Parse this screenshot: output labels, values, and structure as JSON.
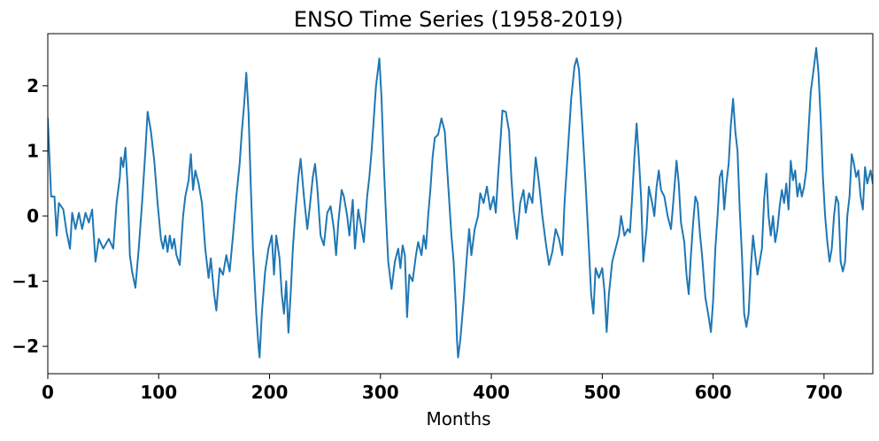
{
  "chart_data": {
    "type": "line",
    "title": "ENSO Time Series (1958-2019)",
    "xlabel": "Months",
    "ylabel": "",
    "xlim": [
      0,
      744
    ],
    "ylim": [
      -2.42,
      2.8
    ],
    "x_ticks": [
      0,
      100,
      200,
      300,
      400,
      500,
      600,
      700
    ],
    "y_ticks": [
      -2,
      -1,
      0,
      1,
      2
    ],
    "y_tick_labels": [
      "−2",
      "−1",
      "0",
      "1",
      "2"
    ],
    "grid": false,
    "legend": "none",
    "series": [
      {
        "color": "#1f77b4",
        "points": [
          [
            0,
            1.5
          ],
          [
            3,
            0.3
          ],
          [
            6,
            0.3
          ],
          [
            8,
            -0.3
          ],
          [
            10,
            0.2
          ],
          [
            14,
            0.1
          ],
          [
            17,
            -0.25
          ],
          [
            20,
            -0.5
          ],
          [
            22,
            0.05
          ],
          [
            25,
            -0.2
          ],
          [
            28,
            0.05
          ],
          [
            31,
            -0.2
          ],
          [
            34,
            0.05
          ],
          [
            37,
            -0.1
          ],
          [
            40,
            0.1
          ],
          [
            43,
            -0.7
          ],
          [
            46,
            -0.35
          ],
          [
            50,
            -0.5
          ],
          [
            55,
            -0.35
          ],
          [
            59,
            -0.5
          ],
          [
            62,
            0.2
          ],
          [
            65,
            0.6
          ],
          [
            66,
            0.9
          ],
          [
            68,
            0.75
          ],
          [
            70,
            1.05
          ],
          [
            72,
            0.45
          ],
          [
            74,
            -0.6
          ],
          [
            76,
            -0.85
          ],
          [
            79,
            -1.1
          ],
          [
            82,
            -0.5
          ],
          [
            85,
            0.2
          ],
          [
            88,
            1.0
          ],
          [
            90,
            1.6
          ],
          [
            93,
            1.3
          ],
          [
            96,
            0.85
          ],
          [
            99,
            0.2
          ],
          [
            102,
            -0.35
          ],
          [
            104,
            -0.5
          ],
          [
            106,
            -0.3
          ],
          [
            108,
            -0.55
          ],
          [
            110,
            -0.3
          ],
          [
            112,
            -0.5
          ],
          [
            114,
            -0.35
          ],
          [
            116,
            -0.6
          ],
          [
            119,
            -0.75
          ],
          [
            122,
            0.0
          ],
          [
            124,
            0.3
          ],
          [
            127,
            0.55
          ],
          [
            129,
            0.95
          ],
          [
            131,
            0.4
          ],
          [
            133,
            0.7
          ],
          [
            136,
            0.5
          ],
          [
            139,
            0.2
          ],
          [
            142,
            -0.5
          ],
          [
            145,
            -0.95
          ],
          [
            147,
            -0.65
          ],
          [
            150,
            -1.2
          ],
          [
            152,
            -1.45
          ],
          [
            155,
            -0.8
          ],
          [
            158,
            -0.9
          ],
          [
            161,
            -0.6
          ],
          [
            164,
            -0.85
          ],
          [
            167,
            -0.3
          ],
          [
            170,
            0.3
          ],
          [
            173,
            0.8
          ],
          [
            175,
            1.3
          ],
          [
            177,
            1.7
          ],
          [
            179,
            2.2
          ],
          [
            181,
            1.6
          ],
          [
            183,
            0.5
          ],
          [
            185,
            -0.5
          ],
          [
            188,
            -1.5
          ],
          [
            190,
            -2.0
          ],
          [
            191,
            -2.17
          ],
          [
            193,
            -1.5
          ],
          [
            196,
            -0.85
          ],
          [
            199,
            -0.5
          ],
          [
            202,
            -0.3
          ],
          [
            204,
            -0.9
          ],
          [
            206,
            -0.3
          ],
          [
            209,
            -0.65
          ],
          [
            211,
            -1.2
          ],
          [
            213,
            -1.5
          ],
          [
            215,
            -1.0
          ],
          [
            217,
            -1.79
          ],
          [
            219,
            -1.2
          ],
          [
            221,
            -0.5
          ],
          [
            223,
            0.0
          ],
          [
            226,
            0.6
          ],
          [
            228,
            0.88
          ],
          [
            231,
            0.3
          ],
          [
            234,
            -0.2
          ],
          [
            236,
            0.1
          ],
          [
            239,
            0.6
          ],
          [
            241,
            0.8
          ],
          [
            243,
            0.45
          ],
          [
            246,
            -0.3
          ],
          [
            249,
            -0.45
          ],
          [
            252,
            0.05
          ],
          [
            255,
            0.15
          ],
          [
            258,
            -0.2
          ],
          [
            260,
            -0.6
          ],
          [
            262,
            -0.1
          ],
          [
            265,
            0.4
          ],
          [
            267,
            0.3
          ],
          [
            270,
            0.0
          ],
          [
            272,
            -0.3
          ],
          [
            275,
            0.25
          ],
          [
            277,
            -0.5
          ],
          [
            280,
            0.1
          ],
          [
            283,
            -0.2
          ],
          [
            285,
            -0.4
          ],
          [
            288,
            0.3
          ],
          [
            290,
            0.6
          ],
          [
            292,
            1.0
          ],
          [
            294,
            1.5
          ],
          [
            296,
            2.0
          ],
          [
            299,
            2.42
          ],
          [
            301,
            1.8
          ],
          [
            303,
            0.8
          ],
          [
            305,
            0.0
          ],
          [
            307,
            -0.7
          ],
          [
            310,
            -1.12
          ],
          [
            313,
            -0.7
          ],
          [
            316,
            -0.5
          ],
          [
            318,
            -0.8
          ],
          [
            320,
            -0.45
          ],
          [
            322,
            -0.6
          ],
          [
            324,
            -1.55
          ],
          [
            326,
            -0.9
          ],
          [
            329,
            -1.0
          ],
          [
            332,
            -0.6
          ],
          [
            334,
            -0.4
          ],
          [
            337,
            -0.6
          ],
          [
            339,
            -0.3
          ],
          [
            341,
            -0.5
          ],
          [
            343,
            0.0
          ],
          [
            345,
            0.4
          ],
          [
            347,
            0.9
          ],
          [
            349,
            1.2
          ],
          [
            352,
            1.25
          ],
          [
            355,
            1.5
          ],
          [
            358,
            1.3
          ],
          [
            361,
            0.5
          ],
          [
            364,
            -0.3
          ],
          [
            366,
            -0.7
          ],
          [
            368,
            -1.4
          ],
          [
            369,
            -1.9
          ],
          [
            370,
            -2.17
          ],
          [
            372,
            -1.9
          ],
          [
            375,
            -1.3
          ],
          [
            378,
            -0.6
          ],
          [
            380,
            -0.2
          ],
          [
            382,
            -0.6
          ],
          [
            385,
            -0.2
          ],
          [
            388,
            0.0
          ],
          [
            390,
            0.35
          ],
          [
            393,
            0.2
          ],
          [
            396,
            0.45
          ],
          [
            399,
            0.1
          ],
          [
            402,
            0.3
          ],
          [
            404,
            0.05
          ],
          [
            406,
            0.6
          ],
          [
            408,
            1.1
          ],
          [
            410,
            1.62
          ],
          [
            413,
            1.6
          ],
          [
            416,
            1.3
          ],
          [
            418,
            0.6
          ],
          [
            420,
            0.1
          ],
          [
            423,
            -0.35
          ],
          [
            426,
            0.2
          ],
          [
            429,
            0.4
          ],
          [
            431,
            0.05
          ],
          [
            434,
            0.35
          ],
          [
            437,
            0.2
          ],
          [
            440,
            0.9
          ],
          [
            443,
            0.5
          ],
          [
            446,
            0.0
          ],
          [
            449,
            -0.4
          ],
          [
            452,
            -0.75
          ],
          [
            455,
            -0.55
          ],
          [
            458,
            -0.2
          ],
          [
            461,
            -0.35
          ],
          [
            464,
            -0.6
          ],
          [
            466,
            0.2
          ],
          [
            469,
            1.0
          ],
          [
            472,
            1.8
          ],
          [
            475,
            2.3
          ],
          [
            477,
            2.42
          ],
          [
            479,
            2.25
          ],
          [
            482,
            1.4
          ],
          [
            485,
            0.5
          ],
          [
            488,
            -0.5
          ],
          [
            490,
            -1.2
          ],
          [
            492,
            -1.5
          ],
          [
            494,
            -0.8
          ],
          [
            497,
            -0.95
          ],
          [
            500,
            -0.8
          ],
          [
            502,
            -1.15
          ],
          [
            504,
            -1.78
          ],
          [
            506,
            -1.2
          ],
          [
            509,
            -0.7
          ],
          [
            512,
            -0.5
          ],
          [
            515,
            -0.3
          ],
          [
            517,
            0.0
          ],
          [
            520,
            -0.3
          ],
          [
            523,
            -0.2
          ],
          [
            525,
            -0.25
          ],
          [
            527,
            0.3
          ],
          [
            529,
            0.9
          ],
          [
            531,
            1.42
          ],
          [
            533,
            0.9
          ],
          [
            535,
            0.3
          ],
          [
            537,
            -0.7
          ],
          [
            540,
            -0.2
          ],
          [
            542,
            0.45
          ],
          [
            545,
            0.2
          ],
          [
            547,
            0.0
          ],
          [
            549,
            0.45
          ],
          [
            551,
            0.7
          ],
          [
            553,
            0.4
          ],
          [
            556,
            0.3
          ],
          [
            559,
            0.0
          ],
          [
            562,
            -0.2
          ],
          [
            564,
            0.2
          ],
          [
            567,
            0.85
          ],
          [
            569,
            0.5
          ],
          [
            571,
            -0.1
          ],
          [
            574,
            -0.4
          ],
          [
            576,
            -0.9
          ],
          [
            578,
            -1.2
          ],
          [
            580,
            -0.6
          ],
          [
            582,
            -0.1
          ],
          [
            584,
            0.3
          ],
          [
            586,
            0.2
          ],
          [
            588,
            -0.25
          ],
          [
            590,
            -0.6
          ],
          [
            593,
            -1.25
          ],
          [
            596,
            -1.55
          ],
          [
            598,
            -1.78
          ],
          [
            600,
            -1.3
          ],
          [
            602,
            -0.5
          ],
          [
            604,
            0.0
          ],
          [
            606,
            0.6
          ],
          [
            608,
            0.7
          ],
          [
            610,
            0.1
          ],
          [
            612,
            0.5
          ],
          [
            614,
            0.8
          ],
          [
            616,
            1.4
          ],
          [
            618,
            1.8
          ],
          [
            620,
            1.3
          ],
          [
            622,
            1.0
          ],
          [
            624,
            0.1
          ],
          [
            626,
            -0.6
          ],
          [
            628,
            -1.5
          ],
          [
            630,
            -1.7
          ],
          [
            632,
            -1.5
          ],
          [
            634,
            -0.8
          ],
          [
            636,
            -0.3
          ],
          [
            638,
            -0.6
          ],
          [
            640,
            -0.9
          ],
          [
            642,
            -0.7
          ],
          [
            644,
            -0.5
          ],
          [
            646,
            0.25
          ],
          [
            648,
            0.65
          ],
          [
            650,
            0.0
          ],
          [
            652,
            -0.3
          ],
          [
            654,
            0.0
          ],
          [
            656,
            -0.4
          ],
          [
            658,
            -0.2
          ],
          [
            660,
            0.15
          ],
          [
            662,
            0.4
          ],
          [
            664,
            0.2
          ],
          [
            666,
            0.5
          ],
          [
            668,
            0.1
          ],
          [
            670,
            0.85
          ],
          [
            672,
            0.55
          ],
          [
            674,
            0.7
          ],
          [
            676,
            0.3
          ],
          [
            678,
            0.5
          ],
          [
            680,
            0.3
          ],
          [
            682,
            0.45
          ],
          [
            684,
            0.7
          ],
          [
            686,
            1.3
          ],
          [
            688,
            1.9
          ],
          [
            691,
            2.3
          ],
          [
            693,
            2.58
          ],
          [
            695,
            2.2
          ],
          [
            697,
            1.5
          ],
          [
            699,
            0.6
          ],
          [
            701,
            0.0
          ],
          [
            703,
            -0.4
          ],
          [
            705,
            -0.7
          ],
          [
            707,
            -0.5
          ],
          [
            709,
            0.0
          ],
          [
            711,
            0.3
          ],
          [
            713,
            0.2
          ],
          [
            715,
            -0.7
          ],
          [
            717,
            -0.85
          ],
          [
            719,
            -0.7
          ],
          [
            721,
            0.0
          ],
          [
            723,
            0.3
          ],
          [
            725,
            0.95
          ],
          [
            727,
            0.8
          ],
          [
            729,
            0.6
          ],
          [
            731,
            0.7
          ],
          [
            733,
            0.3
          ],
          [
            735,
            0.1
          ],
          [
            737,
            0.75
          ],
          [
            739,
            0.5
          ],
          [
            742,
            0.7
          ],
          [
            744,
            0.5
          ]
        ]
      }
    ]
  }
}
